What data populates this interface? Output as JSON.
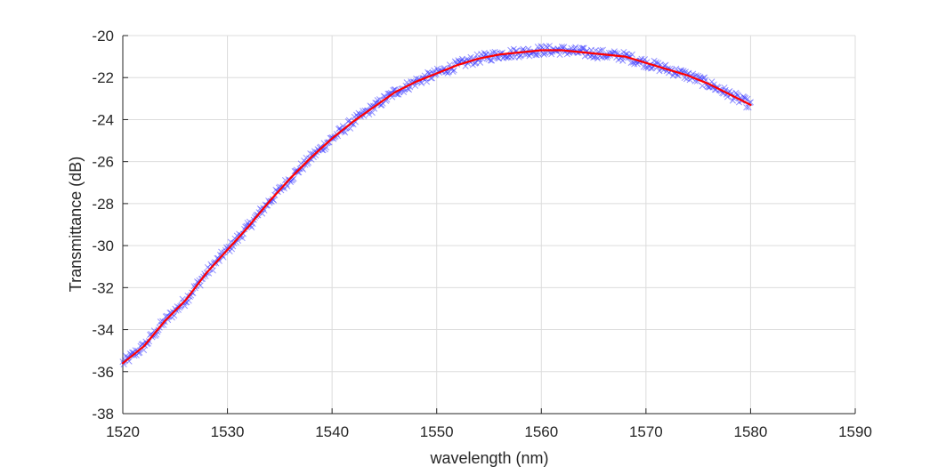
{
  "chart_data": {
    "type": "scatter",
    "title": "",
    "xlabel": "wavelength (nm)",
    "ylabel": "Transmittance (dB)",
    "xlim": [
      1520,
      1590
    ],
    "ylim": [
      -38,
      -20
    ],
    "xticks": [
      "1520",
      "1530",
      "1540",
      "1550",
      "1560",
      "1570",
      "1580",
      "1590"
    ],
    "yticks": [
      "-20",
      "-22",
      "-24",
      "-26",
      "-28",
      "-30",
      "-32",
      "-34",
      "-36",
      "-38"
    ],
    "grid": true,
    "legend": "none",
    "series": [
      {
        "kind": "markers",
        "marker": "x",
        "color": "#3a3aff",
        "x_range": [
          1520,
          1580
        ],
        "sample_count": 600
      },
      {
        "kind": "line",
        "color": "#ff0000",
        "x": [
          1520,
          1522,
          1524,
          1526,
          1528,
          1530,
          1532,
          1534,
          1536,
          1538,
          1540,
          1542,
          1544,
          1546,
          1548,
          1550,
          1552,
          1554,
          1556,
          1558,
          1560,
          1562,
          1564,
          1566,
          1568,
          1570,
          1572,
          1574,
          1576,
          1578,
          1580
        ],
        "y": [
          -35.6,
          -34.8,
          -33.6,
          -32.6,
          -31.3,
          -30.2,
          -29.1,
          -27.9,
          -26.8,
          -25.8,
          -24.9,
          -24.1,
          -23.4,
          -22.7,
          -22.2,
          -21.8,
          -21.4,
          -21.1,
          -20.9,
          -20.8,
          -20.7,
          -20.7,
          -20.8,
          -20.9,
          -21.0,
          -21.3,
          -21.6,
          -21.9,
          -22.3,
          -22.8,
          -23.3
        ]
      }
    ]
  }
}
